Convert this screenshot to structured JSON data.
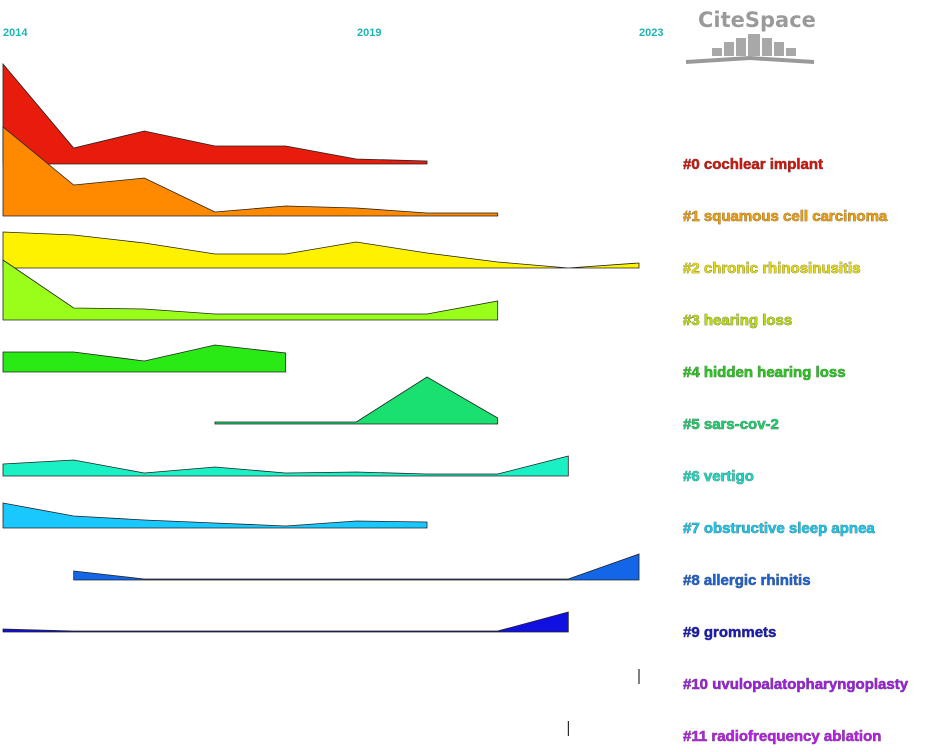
{
  "chart_data": {
    "type": "area",
    "title": "",
    "x_ticks": [
      "2014",
      "2019",
      "2023"
    ],
    "x_range": [
      2014,
      2023
    ],
    "logo": {
      "text": "CiteSpace"
    },
    "series": [
      {
        "name": "#0 cochlear implant",
        "color": "#e81c0c",
        "label_color": "#d4140a",
        "years": [
          2014,
          2015,
          2016,
          2017,
          2018,
          2019,
          2020
        ],
        "values": [
          1.0,
          0.16,
          0.33,
          0.18,
          0.18,
          0.05,
          0.03
        ]
      },
      {
        "name": "#1 squamous cell carcinoma",
        "color": "#ff8a00",
        "label_color": "#ef9d00",
        "years": [
          2014,
          2015,
          2016,
          2017,
          2018,
          2019,
          2020,
          2021
        ],
        "values": [
          0.89,
          0.31,
          0.38,
          0.04,
          0.1,
          0.08,
          0.03,
          0.03
        ]
      },
      {
        "name": "#2 chronic rhinosinusitis",
        "color": "#fff200",
        "label_color": "#e5de00",
        "years": [
          2014,
          2015,
          2016,
          2017,
          2018,
          2019,
          2020,
          2021,
          2022,
          2023
        ],
        "values": [
          0.36,
          0.33,
          0.25,
          0.14,
          0.14,
          0.26,
          0.15,
          0.06,
          0.0,
          0.05
        ]
      },
      {
        "name": "#3 hearing loss",
        "color": "#99ff1a",
        "label_color": "#b8dc00",
        "years": [
          2014,
          2015,
          2016,
          2017,
          2018,
          2019,
          2020,
          2021
        ],
        "values": [
          0.6,
          0.12,
          0.11,
          0.06,
          0.06,
          0.06,
          0.06,
          0.19
        ]
      },
      {
        "name": "#4 hidden hearing loss",
        "color": "#2aea16",
        "label_color": "#24c819",
        "years": [
          2014,
          2015,
          2016,
          2017,
          2018
        ],
        "values": [
          0.2,
          0.2,
          0.11,
          0.27,
          0.19
        ]
      },
      {
        "name": "#5 sars-cov-2",
        "color": "#19e06e",
        "label_color": "#19d16a",
        "years": [
          2017,
          2018,
          2019,
          2020,
          2021
        ],
        "values": [
          0.02,
          0.02,
          0.02,
          0.47,
          0.06
        ]
      },
      {
        "name": "#6 vertigo",
        "color": "#19f0c3",
        "label_color": "#14dcc0",
        "years": [
          2014,
          2015,
          2016,
          2017,
          2018,
          2019,
          2020,
          2021,
          2022
        ],
        "values": [
          0.12,
          0.16,
          0.03,
          0.09,
          0.03,
          0.04,
          0.02,
          0.02,
          0.2
        ]
      },
      {
        "name": "#7 obstructive sleep apnea",
        "color": "#19c8ff",
        "label_color": "#14c8ee",
        "years": [
          2014,
          2015,
          2016,
          2017,
          2018,
          2019,
          2020
        ],
        "values": [
          0.25,
          0.12,
          0.08,
          0.05,
          0.02,
          0.07,
          0.06
        ]
      },
      {
        "name": "#8 allergic rhinitis",
        "color": "#1466e8",
        "label_color": "#1a62d4",
        "years": [
          2015,
          2016,
          2017,
          2018,
          2019,
          2020,
          2021,
          2022,
          2023
        ],
        "values": [
          0.09,
          0.01,
          0.01,
          0.01,
          0.01,
          0.01,
          0.01,
          0.01,
          0.26
        ]
      },
      {
        "name": "#9 grommets",
        "color": "#1010e0",
        "label_color": "#1a1ab8",
        "years": [
          2014,
          2015,
          2016,
          2017,
          2018,
          2019,
          2020,
          2021,
          2022
        ],
        "values": [
          0.03,
          0.01,
          0.01,
          0.01,
          0.01,
          0.01,
          0.01,
          0.01,
          0.2
        ]
      },
      {
        "name": "#10 uvulopalatopharyngoplasty",
        "color": "#7a1aa8",
        "label_color": "#a01ee0",
        "years": [
          2023
        ],
        "values": [
          0.15
        ]
      },
      {
        "name": "#11 radiofrequency ablation",
        "color": "#a01ee0",
        "label_color": "#b81ee8",
        "years": [
          2022
        ],
        "values": [
          0.15
        ]
      }
    ]
  }
}
